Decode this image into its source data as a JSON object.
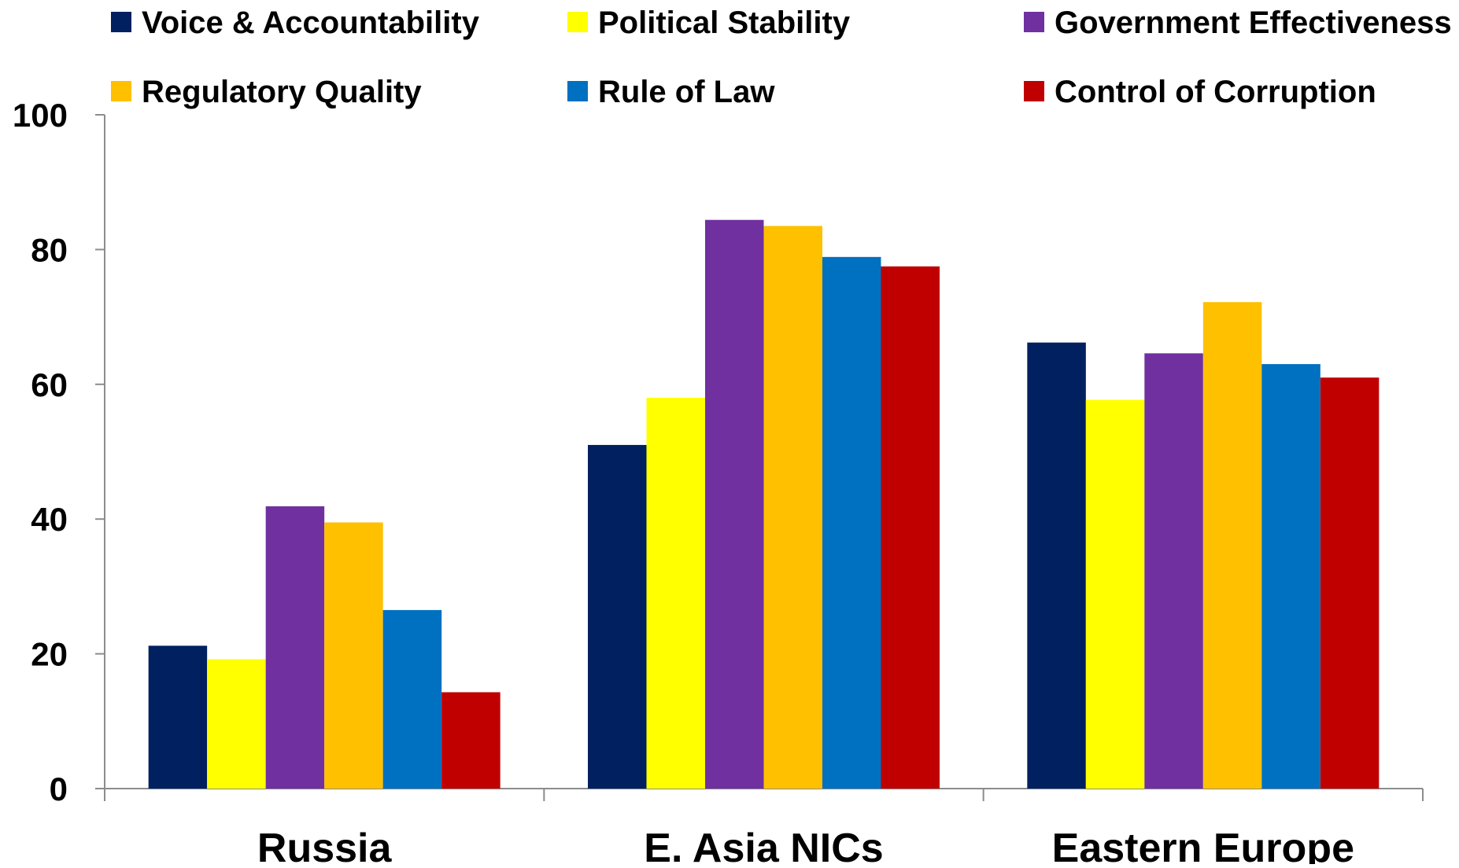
{
  "chart_data": {
    "type": "bar",
    "title": "",
    "xlabel": "",
    "ylabel": "",
    "ylim": [
      0,
      100
    ],
    "yticks": [
      0,
      20,
      40,
      60,
      80,
      100
    ],
    "grid": false,
    "legend_position": "top",
    "categories": [
      "Russia",
      "E. Asia NICs",
      "Eastern Europe"
    ],
    "series": [
      {
        "name": "Voice & Accountability",
        "color": "#002060",
        "values": [
          21.2,
          51.0,
          66.2
        ]
      },
      {
        "name": "Political Stability",
        "color": "#FFFF00",
        "values": [
          19.2,
          58.0,
          57.7
        ]
      },
      {
        "name": "Government Effectiveness",
        "color": "#7030A0",
        "values": [
          41.9,
          84.4,
          64.6
        ]
      },
      {
        "name": "Regulatory Quality",
        "color": "#FFC000",
        "values": [
          39.5,
          83.5,
          72.2
        ]
      },
      {
        "name": "Rule of Law",
        "color": "#0070C0",
        "values": [
          26.5,
          78.9,
          63.0
        ]
      },
      {
        "name": "Control of Corruption",
        "color": "#C00000",
        "values": [
          14.3,
          77.5,
          61.0
        ]
      }
    ]
  }
}
